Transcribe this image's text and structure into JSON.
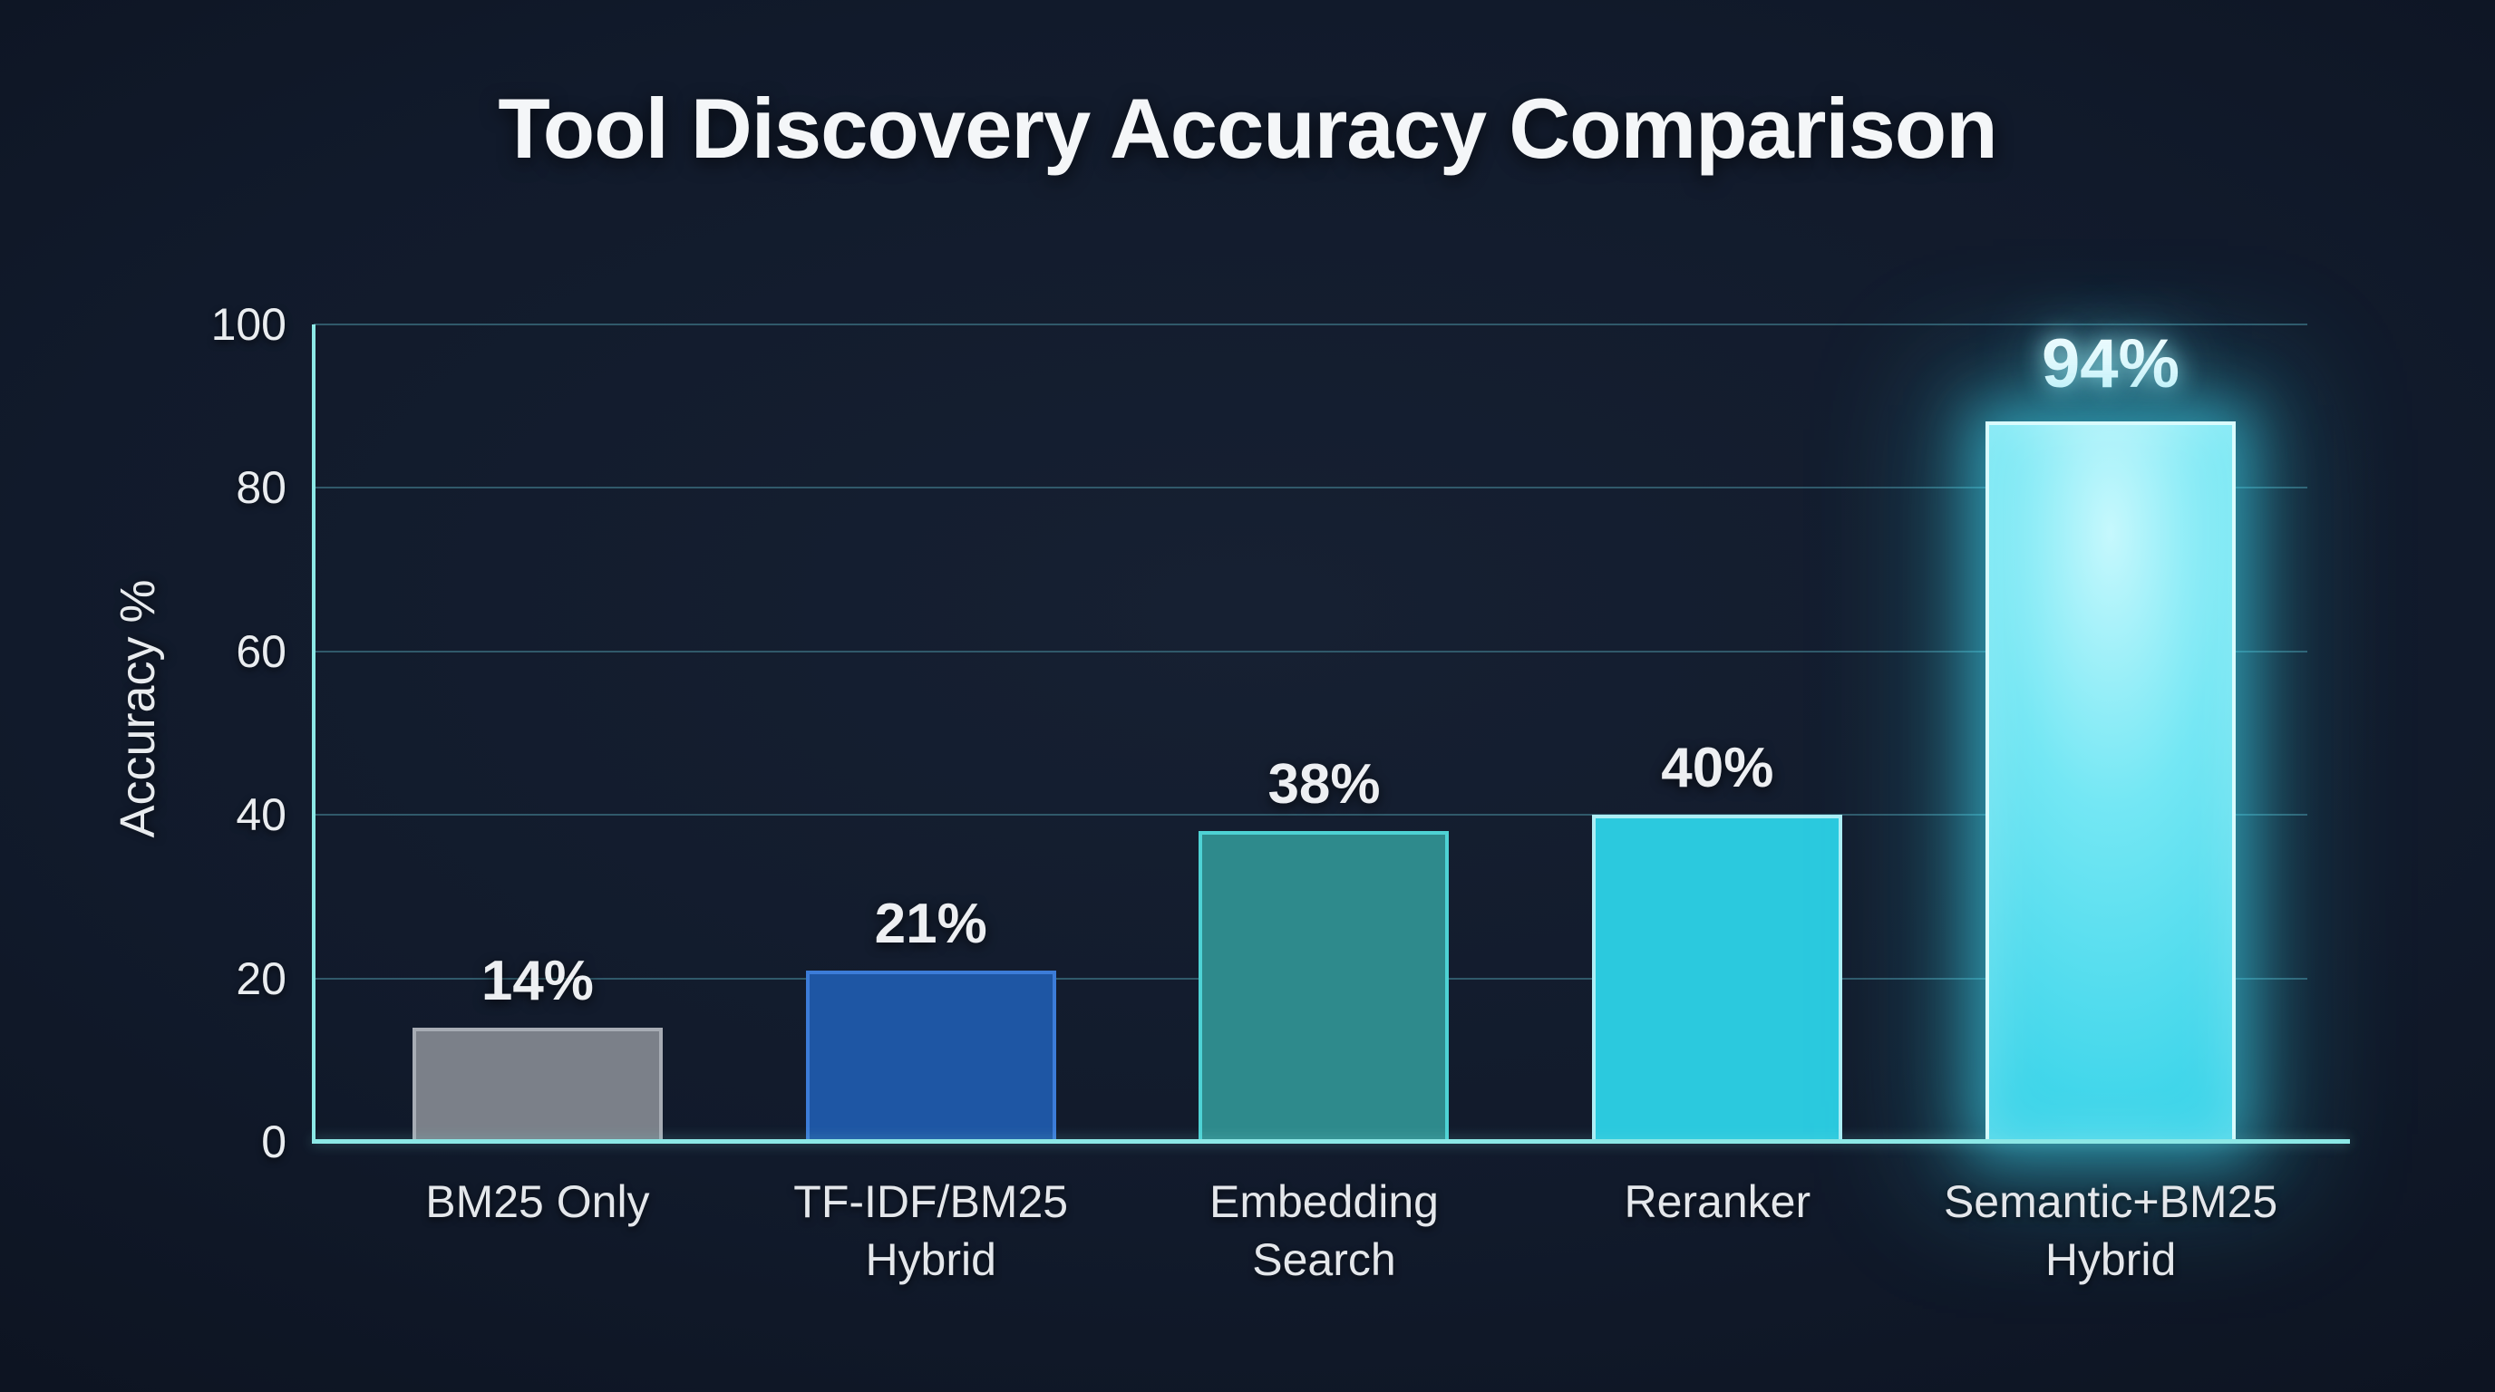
{
  "chart_data": {
    "type": "bar",
    "title": "Tool Discovery Accuracy Comparison",
    "xlabel": "",
    "ylabel": "Accuracy %",
    "ylim": [
      0,
      100
    ],
    "yticks": [
      0,
      20,
      40,
      60,
      80,
      100
    ],
    "grid": true,
    "legend": false,
    "categories": [
      "BM25 Only",
      "TF-IDF/BM25 Hybrid",
      "Embedding Search",
      "Reranker",
      "Semantic+BM25 Hybrid"
    ],
    "values": [
      14,
      21,
      38,
      40,
      94
    ],
    "value_labels": [
      "14%",
      "21%",
      "38%",
      "40%",
      "94%"
    ],
    "highlight_index": 4,
    "bars": [
      {
        "category": "BM25 Only",
        "value": 14,
        "label": "14%",
        "fill": "#7b8089",
        "border": "#a7acb4",
        "glow": false
      },
      {
        "category": "TF-IDF/BM25 Hybrid",
        "value": 21,
        "label": "21%",
        "fill": "#1e56a4",
        "border": "#3c7cd8",
        "glow": false
      },
      {
        "category": "Embedding Search",
        "value": 38,
        "label": "38%",
        "fill": "#2e8a8c",
        "border": "#4ed2d4",
        "glow": false
      },
      {
        "category": "Reranker",
        "value": 40,
        "label": "40%",
        "fill": "#2bc9de",
        "border": "#aeeef5",
        "glow": false
      },
      {
        "category": "Semantic+BM25 Hybrid",
        "value": 94,
        "label": "94%",
        "fill": "#3ed6ea",
        "border": "#d9fbfd",
        "glow": true
      }
    ],
    "glow_fill_stops": [
      "#c6f8fd",
      "#74e7f4",
      "#2ed0e7"
    ],
    "colors": {
      "axis": "#8ce8e6",
      "gridline": "#30596a",
      "tick_text": "#eaedf0",
      "value_text": "#edeff2",
      "title_text": "#f4f6f8",
      "highlight_glow": "#3ed6ec",
      "background_center": "#162032",
      "background_edge": "#0b111d"
    }
  }
}
